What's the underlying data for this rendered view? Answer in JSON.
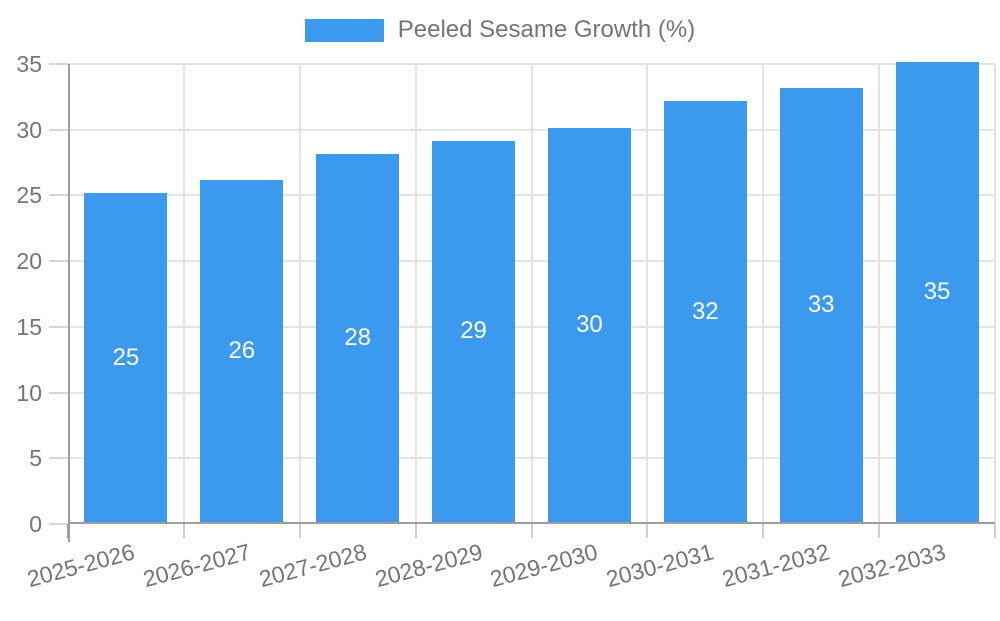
{
  "chart_data": {
    "type": "bar",
    "title": "Peeled Sesame Growth (%)",
    "categories": [
      "2025-2026",
      "2026-2027",
      "2027-2028",
      "2028-2029",
      "2029-2030",
      "2030-2031",
      "2031-2032",
      "2032-2033"
    ],
    "values": [
      25,
      26,
      28,
      29,
      30,
      32,
      33,
      35
    ],
    "value_labels": [
      "25",
      "26",
      "28",
      "29",
      "30",
      "32",
      "33",
      "35"
    ],
    "yticks": [
      0,
      5,
      10,
      15,
      20,
      25,
      30,
      35
    ],
    "ylim": [
      0,
      35
    ],
    "xlabel": "",
    "ylabel": "",
    "grid": true,
    "legend_position": "top-center",
    "colors": {
      "bar": "#3B9AEE",
      "value_label": "#ffffff",
      "axis_text": "#757575",
      "legend_text": "#757575",
      "gridline": "#e4e4e4",
      "axis_line": "#9e9e9e",
      "background": "#ffffff"
    }
  }
}
